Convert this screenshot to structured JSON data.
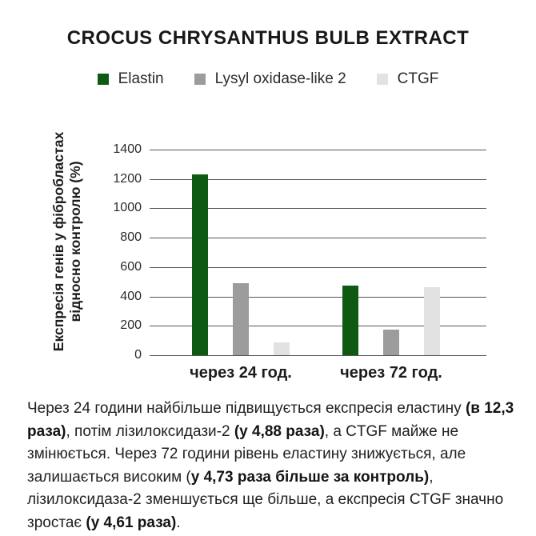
{
  "chart_data": {
    "type": "bar",
    "title": "CROCUS CHRYSANTHUS BULB EXTRACT",
    "categories": [
      "через 24 год.",
      "через 72 год."
    ],
    "series": [
      {
        "name": "Elastin",
        "color": "#0e5a13",
        "values": [
          1230,
          473
        ]
      },
      {
        "name": "Lysyl oxidase-like 2",
        "color": "#9c9c9c",
        "values": [
          488,
          175
        ]
      },
      {
        "name": "CTGF",
        "color": "#e2e2e2",
        "values": [
          90,
          461
        ]
      }
    ],
    "ylabel_lines": [
      "Експресія генів у фібробластах",
      "відносно контролю (%)"
    ],
    "yticks": [
      1400,
      1200,
      1000,
      800,
      600,
      400,
      200,
      0
    ],
    "ylim": [
      0,
      1400
    ],
    "grid": true,
    "legend_position": "top"
  },
  "description": {
    "segments": [
      {
        "text": "Через 24 години найбільше підвищується експресія еластину ",
        "bold": false
      },
      {
        "text": "(в 12,3 раза)",
        "bold": true
      },
      {
        "text": ", потім лізилоксидази-2 ",
        "bold": false
      },
      {
        "text": "(у 4,88 раза)",
        "bold": true
      },
      {
        "text": ", а CTGF майже не змінюється. Через 72 години рівень еластину знижується, але залишається високим (",
        "bold": false
      },
      {
        "text": "у 4,73 раза більше за контроль)",
        "bold": true
      },
      {
        "text": ", лізилоксидаза-2 зменшується ще більше, а експресія CTGF значно зростає ",
        "bold": false
      },
      {
        "text": "(у 4,61 раза)",
        "bold": true
      },
      {
        "text": ".",
        "bold": false
      }
    ]
  },
  "colors": {
    "background": "#ffffff",
    "grid_line": "#565656",
    "accent_green": "#0e5a13",
    "text": "#1f1f1f"
  }
}
